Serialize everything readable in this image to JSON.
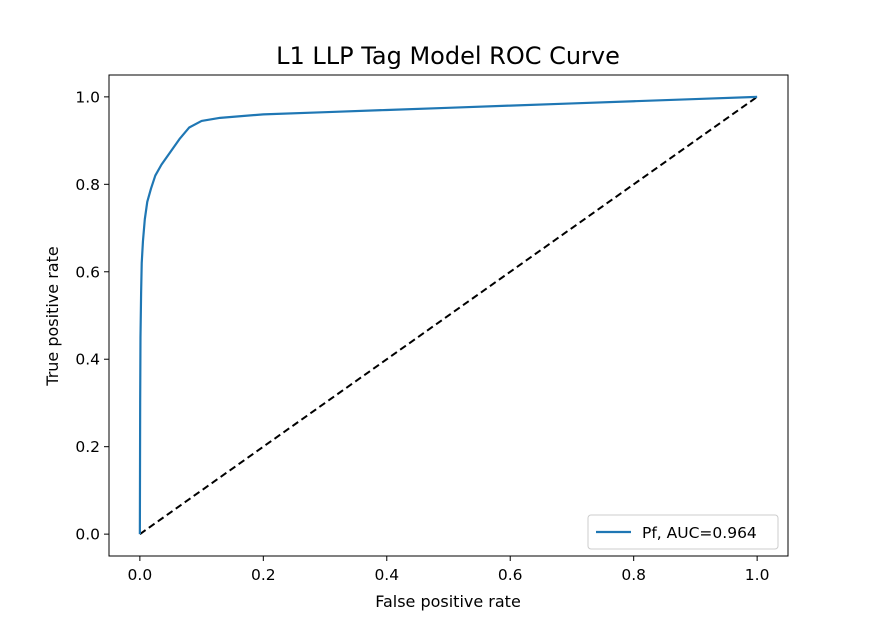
{
  "chart_data": {
    "type": "line",
    "title": "L1 LLP Tag Model ROC Curve",
    "xlabel": "False positive rate",
    "ylabel": "True positive rate",
    "xlim": [
      -0.05,
      1.05
    ],
    "ylim": [
      -0.05,
      1.05
    ],
    "xticks": [
      "0.0",
      "0.2",
      "0.4",
      "0.6",
      "0.8",
      "1.0"
    ],
    "yticks": [
      "0.0",
      "0.2",
      "0.4",
      "0.6",
      "0.8",
      "1.0"
    ],
    "grid": false,
    "legend": {
      "position": "lower right",
      "entries": [
        "Pf, AUC=0.964"
      ]
    },
    "series": [
      {
        "name": "Pf, AUC=0.964",
        "color": "#1f77b4",
        "style": "solid",
        "x": [
          0.0,
          0.0005,
          0.001,
          0.002,
          0.003,
          0.005,
          0.008,
          0.012,
          0.018,
          0.025,
          0.035,
          0.05,
          0.065,
          0.08,
          0.1,
          0.13,
          0.2,
          0.3,
          0.4,
          0.5,
          0.6,
          0.7,
          0.8,
          0.9,
          1.0
        ],
        "y": [
          0.0,
          0.3,
          0.45,
          0.55,
          0.62,
          0.67,
          0.72,
          0.76,
          0.79,
          0.82,
          0.845,
          0.875,
          0.905,
          0.93,
          0.945,
          0.952,
          0.96,
          0.965,
          0.97,
          0.975,
          0.98,
          0.985,
          0.99,
          0.995,
          1.0
        ]
      },
      {
        "name": "",
        "color": "#000000",
        "style": "dashed",
        "x": [
          0.0,
          1.0
        ],
        "y": [
          0.0,
          1.0
        ]
      }
    ]
  }
}
